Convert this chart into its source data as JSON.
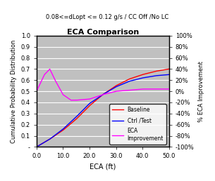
{
  "title": "ECA Comparison",
  "subtitle": "0.08<=dLopt <= 0.12 g/s / CC Off /No LC",
  "xlabel": "ECA (ft)",
  "ylabel_left": "Cumulative Probability Distribution",
  "ylabel_right": "% ECA Improvement",
  "xlim": [
    0,
    50
  ],
  "ylim_left": [
    0,
    1.0
  ],
  "ylim_right": [
    -1.0,
    1.0
  ],
  "yticks_left": [
    0.0,
    0.1,
    0.2,
    0.3,
    0.4,
    0.5,
    0.6,
    0.7,
    0.8,
    0.9,
    1.0
  ],
  "ytick_labels_left": [
    "-",
    "0.1",
    "0.2",
    "0.3",
    "0.4",
    "0.5",
    "0.6",
    "0.7",
    "0.8",
    "0.9",
    "1.0"
  ],
  "yticks_right": [
    -1.0,
    -0.8,
    -0.6,
    -0.4,
    -0.2,
    0.0,
    0.2,
    0.4,
    0.6,
    0.8,
    1.0
  ],
  "ytick_labels_right": [
    "-100%",
    "-80%",
    "-60%",
    "-40%",
    "-20%",
    "0%",
    "20%",
    "40%",
    "60%",
    "80%",
    "100%"
  ],
  "xticks": [
    0.0,
    10.0,
    20.0,
    30.0,
    40.0,
    50.0
  ],
  "background_color": "#c0c0c0",
  "grid_color": "#ffffff",
  "baseline_color": "#ff0000",
  "ctrl_color": "#0000ff",
  "eca_color": "#ff00ff",
  "legend_entries": [
    "Baseline",
    "Ctrl /Test",
    "ECA\nImprovement"
  ]
}
